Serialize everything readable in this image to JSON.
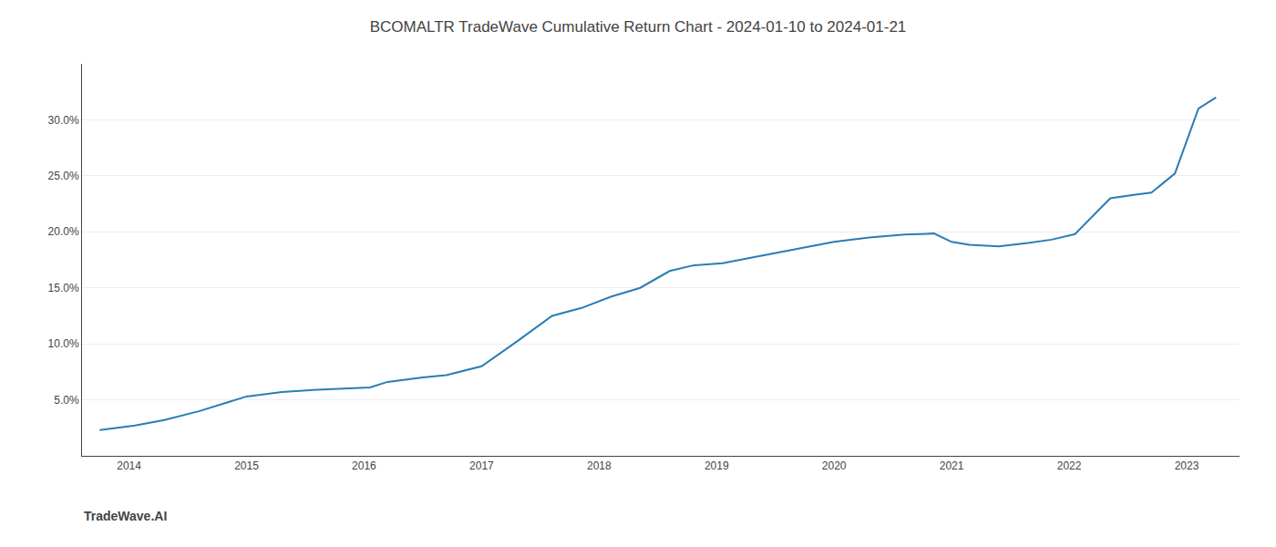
{
  "chart_data": {
    "type": "line",
    "title": "BCOMALTR TradeWave Cumulative Return Chart - 2024-01-10 to 2024-01-21",
    "annotations": [
      {
        "text": "TradeWave.AI"
      }
    ],
    "x": [
      2013.75,
      2014.05,
      2014.3,
      2014.6,
      2015.0,
      2015.3,
      2015.6,
      2015.85,
      2016.05,
      2016.2,
      2016.5,
      2016.7,
      2017.0,
      2017.3,
      2017.6,
      2017.85,
      2018.1,
      2018.35,
      2018.6,
      2018.8,
      2019.05,
      2019.3,
      2019.55,
      2019.8,
      2020.0,
      2020.3,
      2020.6,
      2020.85,
      2021.0,
      2021.15,
      2021.4,
      2021.65,
      2021.85,
      2022.05,
      2022.35,
      2022.55,
      2022.7,
      2022.9,
      2023.1,
      2023.25
    ],
    "values": [
      2.3,
      2.7,
      3.2,
      4.0,
      5.3,
      5.7,
      5.9,
      6.0,
      6.1,
      6.6,
      7.0,
      7.2,
      8.0,
      10.2,
      12.5,
      13.2,
      14.2,
      15.0,
      16.5,
      17.0,
      17.2,
      17.7,
      18.2,
      18.7,
      19.1,
      19.5,
      19.75,
      19.85,
      19.1,
      18.85,
      18.7,
      19.0,
      19.3,
      19.8,
      23.0,
      23.3,
      23.5,
      25.2,
      31.0,
      32.0
    ],
    "color": "#2a7db5",
    "xlim": [
      2013.6,
      2023.45
    ],
    "xticks": [
      2014,
      2015,
      2016,
      2017,
      2018,
      2019,
      2020,
      2021,
      2022,
      2023
    ],
    "ylim": [
      0,
      35
    ],
    "yticks": [
      {
        "value": 5.0,
        "label": "5.0%"
      },
      {
        "value": 10.0,
        "label": "10.0%"
      },
      {
        "value": 15.0,
        "label": "15.0%"
      },
      {
        "value": 20.0,
        "label": "20.0%"
      },
      {
        "value": 25.0,
        "label": "25.0%"
      },
      {
        "value": 30.0,
        "label": "30.0%"
      }
    ],
    "grid": "y"
  }
}
